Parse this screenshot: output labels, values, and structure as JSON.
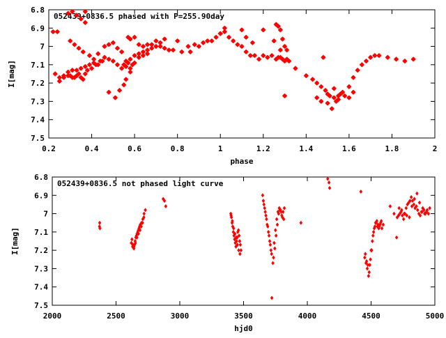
{
  "colors": {
    "points": "#ff0000",
    "axes": "#000000",
    "background": "#ffffff"
  },
  "chart_data": [
    {
      "type": "scatter",
      "title": "052439+0836.5 phased with P=255.90day",
      "xlabel": "phase",
      "ylabel": "I[mag]",
      "xlim": [
        0.2,
        2
      ],
      "ylim": [
        7.5,
        6.8
      ],
      "y_inverted": true,
      "grid": false,
      "legend": "none",
      "marker": "star",
      "xticks": [
        "0.2",
        "0.4",
        "0.6",
        "0.8",
        "1",
        "1.2",
        "1.4",
        "1.6",
        "1.8",
        "2"
      ],
      "yticks": [
        "6.8",
        "6.9",
        "7",
        "7.1",
        "7.2",
        "7.3",
        "7.4",
        "7.5"
      ],
      "series": [
        {
          "x": [
            0.23,
            0.25,
            0.27,
            0.29,
            0.3,
            0.31,
            0.32,
            0.33,
            0.34,
            0.35,
            0.36,
            0.37,
            0.38,
            0.4,
            0.42,
            0.44,
            0.46,
            0.48,
            0.5,
            0.52,
            0.54,
            0.56,
            0.58,
            0.6,
            0.62,
            0.64,
            0.66,
            0.68,
            0.7,
            0.72,
            0.74,
            0.76,
            0.78,
            0.82,
            0.86,
            0.9,
            0.94,
            0.98,
            1.0,
            1.02,
            1.04,
            1.06,
            1.08,
            1.1,
            1.12,
            1.14,
            1.16,
            1.18,
            1.2,
            1.22,
            1.24,
            1.26,
            1.27,
            1.28,
            1.29,
            1.3,
            1.31,
            1.32,
            1.35,
            1.4,
            1.43,
            1.45,
            1.47,
            1.49,
            1.5,
            1.51,
            1.53,
            1.55,
            1.57,
            1.6,
            1.62,
            1.64,
            1.66,
            1.68,
            1.7,
            1.72,
            1.74,
            1.78,
            1.82,
            1.86,
            1.9,
            0.29,
            0.31,
            0.33,
            0.35,
            0.37,
            0.37,
            0.3,
            0.32,
            0.34,
            0.36,
            0.39,
            0.41,
            0.43,
            0.46,
            0.48,
            0.5,
            0.52,
            0.54,
            0.55,
            0.56,
            0.57,
            0.58,
            0.59,
            0.6,
            0.62,
            0.64,
            0.66,
            0.57,
            0.48,
            0.51,
            0.53,
            0.55,
            0.56,
            0.58,
            1.3,
            1.26,
            1.27,
            1.28,
            1.29,
            1.3,
            1.31,
            1.48,
            1.5,
            1.52,
            1.54,
            1.56,
            1.58,
            1.6,
            1.62,
            1.45,
            1.47,
            1.53,
            1.55,
            1.25,
            1.28,
            1.1,
            1.12,
            1.15,
            1.2,
            1.0,
            1.02,
            0.96,
            0.92,
            0.88,
            0.85,
            0.8,
            0.74,
            0.72,
            0.7,
            0.68,
            0.66,
            0.64,
            0.62,
            0.6,
            0.58,
            0.45,
            0.43,
            0.41,
            0.39,
            0.37,
            0.35,
            0.33,
            0.31,
            0.29,
            0.27,
            0.25,
            0.24,
            0.22
          ],
          "y": [
            7.15,
            7.19,
            7.17,
            7.16,
            7.16,
            7.17,
            7.17,
            7.16,
            7.15,
            7.17,
            7.18,
            7.15,
            7.13,
            7.12,
            7.1,
            7.08,
            7.06,
            7.07,
            7.08,
            7.1,
            7.12,
            7.11,
            7.07,
            7.05,
            7.04,
            7.03,
            7.02,
            7.01,
            7.0,
            7.0,
            7.01,
            7.02,
            7.02,
            7.03,
            7.03,
            7.0,
            6.97,
            6.95,
            6.93,
            6.92,
            6.95,
            6.97,
            6.99,
            7.0,
            7.03,
            7.05,
            7.05,
            7.07,
            7.05,
            7.06,
            7.05,
            7.07,
            7.06,
            7.06,
            7.07,
            7.08,
            7.07,
            7.08,
            7.12,
            7.16,
            7.18,
            7.2,
            7.22,
            7.24,
            7.26,
            7.27,
            7.28,
            7.27,
            7.25,
            7.22,
            7.17,
            7.13,
            7.1,
            7.08,
            7.06,
            7.05,
            7.05,
            7.06,
            7.07,
            7.08,
            7.07,
            6.82,
            6.81,
            6.83,
            6.85,
            6.81,
            6.87,
            6.97,
            6.99,
            7.01,
            7.03,
            7.05,
            7.07,
            7.04,
            7.0,
            6.99,
            6.98,
            7.01,
            7.03,
            7.1,
            7.08,
            7.09,
            7.12,
            7.1,
            7.09,
            7.06,
            7.05,
            7.04,
            6.95,
            7.25,
            7.28,
            7.24,
            7.21,
            7.18,
            7.14,
            7.27,
            6.88,
            6.89,
            6.91,
            6.96,
            7.0,
            7.02,
            7.06,
            7.31,
            7.34,
            7.3,
            7.26,
            7.27,
            7.28,
            7.25,
            7.28,
            7.3,
            7.23,
            7.29,
            6.97,
            7.02,
            6.91,
            6.95,
            6.98,
            6.91,
            6.93,
            6.9,
            6.97,
            6.98,
            6.99,
            7.0,
            6.97,
            6.96,
            6.98,
            6.97,
            6.99,
            6.99,
            7.0,
            6.99,
            6.95,
            6.96,
            7.08,
            7.1,
            7.09,
            7.1,
            7.11,
            7.12,
            7.13,
            7.13,
            7.14,
            7.16,
            7.17,
            6.92,
            6.92
          ]
        }
      ]
    },
    {
      "type": "scatter",
      "title": "052439+0836.5 not phased light curve",
      "xlabel": "hjd0",
      "ylabel": "I[mag]",
      "xlim": [
        2000,
        5000
      ],
      "ylim": [
        7.5,
        6.8
      ],
      "y_inverted": true,
      "grid": false,
      "legend": "none",
      "marker": "diamond",
      "xticks": [
        "2000",
        "2500",
        "3000",
        "3500",
        "4000",
        "4500",
        "5000"
      ],
      "yticks": [
        "6.8",
        "6.9",
        "7",
        "7.1",
        "7.2",
        "7.3",
        "7.4",
        "7.5"
      ],
      "series": [
        {
          "x": [
            2370,
            2372,
            2374,
            2620,
            2630,
            2640,
            2650,
            2660,
            2670,
            2680,
            2690,
            2700,
            2710,
            2720,
            2730,
            2645,
            2655,
            2665,
            2675,
            2685,
            2870,
            2880,
            2890,
            3400,
            3405,
            3410,
            3415,
            3420,
            3425,
            3430,
            3435,
            3440,
            3445,
            3450,
            3455,
            3460,
            3465,
            3470,
            3475,
            3480,
            3650,
            3660,
            3670,
            3680,
            3690,
            3700,
            3710,
            3720,
            3730,
            3740,
            3750,
            3760,
            3770,
            3780,
            3790,
            3800,
            3810,
            3820,
            3950,
            4160,
            4170,
            4175,
            4420,
            4450,
            4460,
            4470,
            4480,
            4490,
            4500,
            4510,
            4520,
            4530,
            4540,
            4550,
            4560,
            4570,
            4580,
            4650,
            4680,
            4700,
            4720,
            4740,
            4760,
            4780,
            4800,
            4820,
            4840,
            4860,
            4880,
            4900,
            4920,
            4940,
            4950,
            4960
          ],
          "y": [
            7.07,
            7.05,
            7.08,
            7.16,
            7.18,
            7.19,
            7.15,
            7.12,
            7.1,
            7.08,
            7.06,
            7.05,
            7.03,
            7.0,
            6.98,
            7.17,
            7.13,
            7.11,
            7.09,
            7.07,
            6.92,
            6.93,
            6.96,
            7.0,
            7.02,
            7.05,
            7.07,
            7.1,
            7.12,
            7.14,
            7.16,
            7.18,
            7.15,
            7.13,
            7.1,
            7.09,
            7.12,
            7.15,
            7.17,
            7.2,
            6.9,
            6.95,
            6.99,
            7.03,
            7.07,
            7.12,
            7.17,
            7.22,
            7.27,
            7.16,
            7.09,
            7.03,
            6.99,
            6.97,
            6.98,
            7.01,
            6.99,
            6.97,
            7.05,
            6.81,
            6.83,
            6.86,
            6.88,
            7.24,
            7.27,
            7.3,
            7.34,
            7.28,
            7.2,
            7.15,
            7.1,
            7.07,
            7.05,
            7.07,
            7.08,
            7.06,
            7.04,
            6.96,
            7.0,
            7.13,
            6.97,
            6.98,
            7.0,
            7.01,
            7.02,
            6.96,
            6.92,
            6.89,
            6.94,
            6.99,
            7.0,
            6.98,
            7.0,
            6.97
          ]
        },
        {
          "x": [
            2625,
            2633,
            2641,
            2652,
            2664,
            2676,
            2688,
            2698,
            2708,
            2718,
            3402,
            3412,
            3422,
            3432,
            3442,
            3452,
            3462,
            3472,
            3655,
            3665,
            3675,
            3685,
            3695,
            3705,
            3715,
            3722,
            3735,
            3745,
            3755,
            3765,
            3775,
            3785,
            3795,
            3805,
            3815,
            4455,
            4465,
            4475,
            4485,
            4495,
            4505,
            4515,
            4525,
            4535,
            4545,
            4555,
            4565,
            4575,
            4585,
            4595,
            4705,
            4715,
            4725,
            4735,
            4745,
            4755,
            4765,
            4775,
            4785,
            4795,
            4805,
            4815,
            4825,
            4835,
            4845,
            4855,
            4865,
            4875,
            4885,
            4895,
            4905,
            4915,
            4925,
            4935
          ],
          "y": [
            7.14,
            7.17,
            7.18,
            7.16,
            7.13,
            7.11,
            7.09,
            7.07,
            7.05,
            7.02,
            7.01,
            7.04,
            7.08,
            7.11,
            7.13,
            7.17,
            7.2,
            7.22,
            6.93,
            6.97,
            7.01,
            7.06,
            7.1,
            7.15,
            7.2,
            7.46,
            7.24,
            7.19,
            7.12,
            7.06,
            7.0,
            6.98,
            6.99,
            7.02,
            7.03,
            7.22,
            7.26,
            7.28,
            7.32,
            7.25,
            7.2,
            7.12,
            7.08,
            7.05,
            7.04,
            7.06,
            7.07,
            7.05,
            7.08,
            7.06,
            7.02,
            7.01,
            7.0,
            6.99,
            7.01,
            7.03,
            7.0,
            6.97,
            6.95,
            6.94,
            6.93,
            6.91,
            6.93,
            6.95,
            6.97,
            6.96,
            6.98,
            7.0,
            7.01,
            6.99,
            6.97,
            6.98,
            7.0,
            6.99
          ]
        }
      ]
    }
  ]
}
